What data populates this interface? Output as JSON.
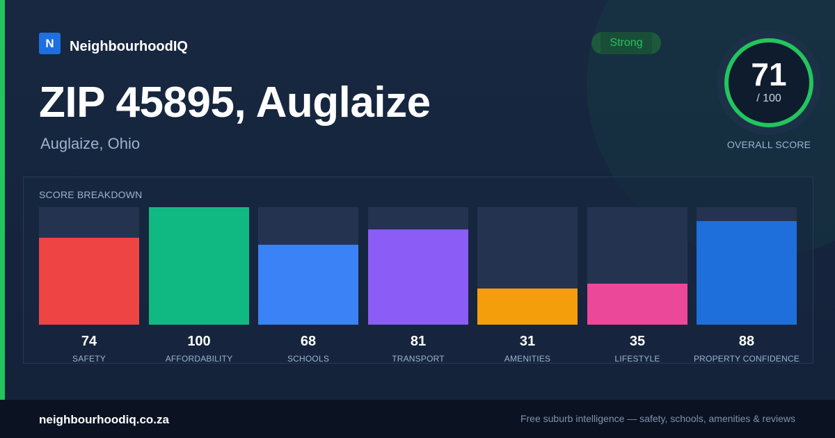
{
  "brand": {
    "logo_letter": "N",
    "name": "NeighbourhoodIQ"
  },
  "location": {
    "title": "ZIP 45895, Auglaize",
    "subtitle": "Auglaize, Ohio"
  },
  "rating": {
    "badge": "Strong",
    "color": "#22c55e"
  },
  "overall": {
    "score": "71",
    "max_label": "/ 100",
    "label": "OVERALL SCORE",
    "fraction": 0.71
  },
  "breakdown": {
    "title": "SCORE BREAKDOWN",
    "items": [
      {
        "label": "SAFETY",
        "value": 74,
        "color": "#ef4444"
      },
      {
        "label": "AFFORDABILITY",
        "value": 100,
        "color": "#10b981"
      },
      {
        "label": "SCHOOLS",
        "value": 68,
        "color": "#3b82f6"
      },
      {
        "label": "TRANSPORT",
        "value": 81,
        "color": "#8b5cf6"
      },
      {
        "label": "AMENITIES",
        "value": 31,
        "color": "#f59e0b"
      },
      {
        "label": "LIFESTYLE",
        "value": 35,
        "color": "#ec4899"
      },
      {
        "label": "PROPERTY CONFIDENCE",
        "value": 88,
        "color": "#1e6fdb"
      }
    ]
  },
  "footer": {
    "url": "neighbourhoodiq.co.za",
    "tagline": "Free suburb intelligence — safety, schools, amenities & reviews"
  }
}
